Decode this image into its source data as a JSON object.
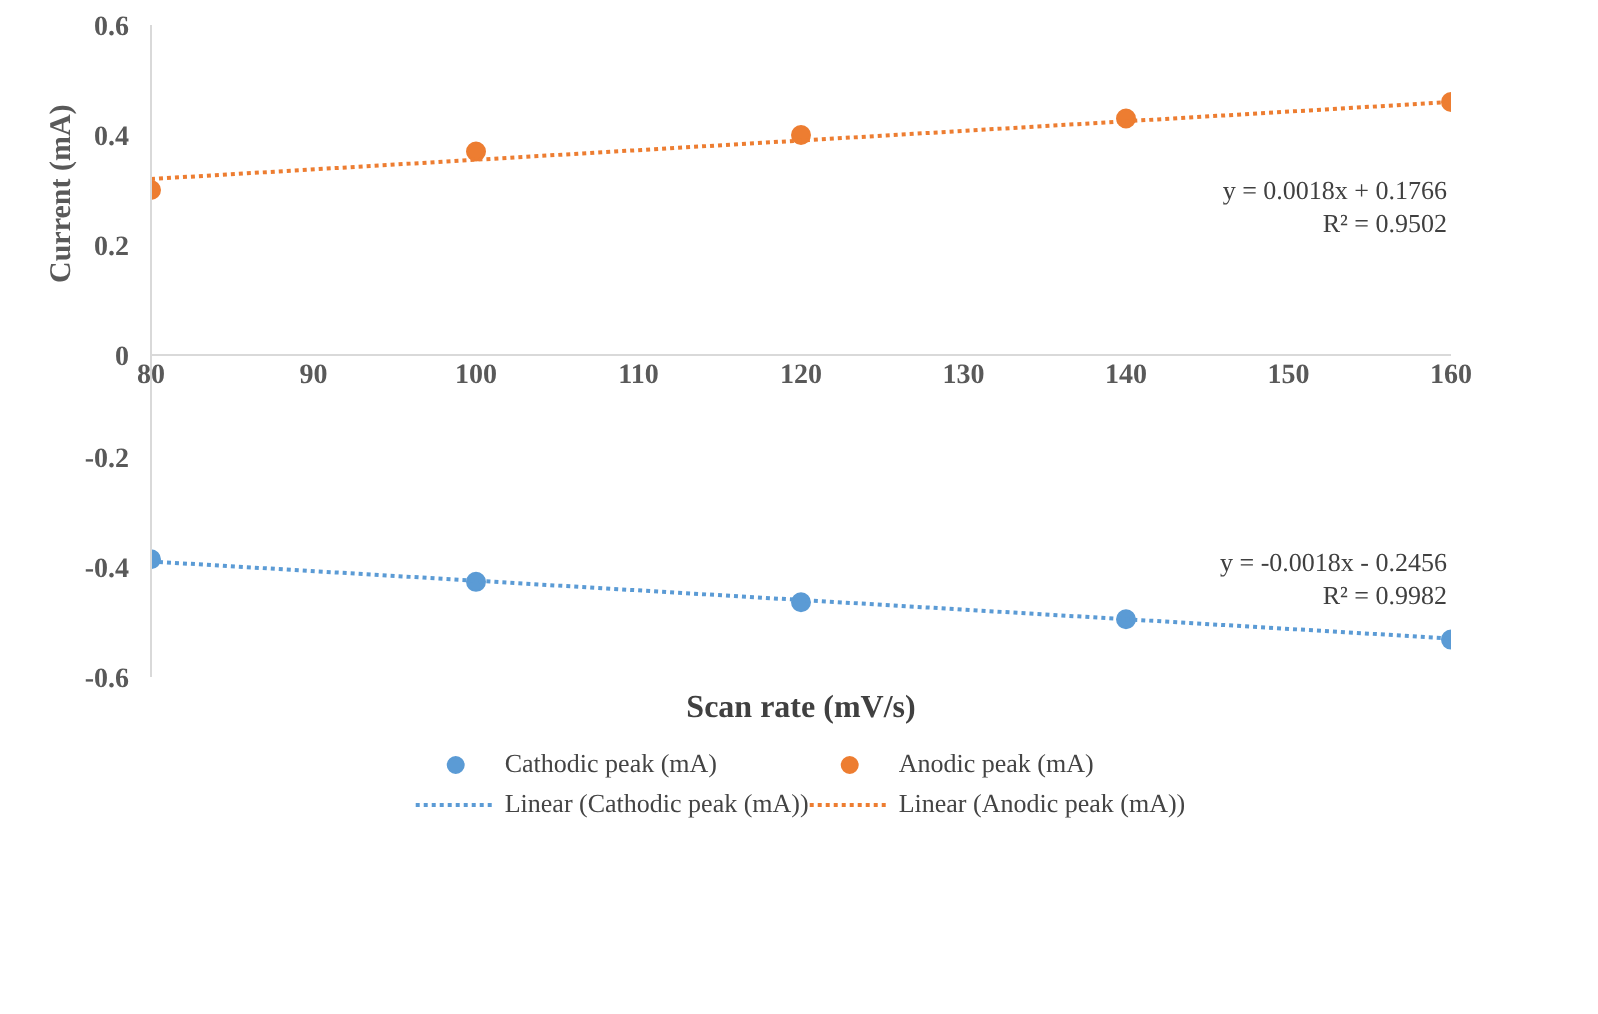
{
  "chart_data": {
    "type": "scatter",
    "xlabel": "Scan rate (mV/s)",
    "ylabel": "Current  (mA)",
    "x": [
      80,
      100,
      120,
      140,
      160
    ],
    "xlim": [
      80,
      160
    ],
    "xticks": [
      80,
      90,
      100,
      110,
      120,
      130,
      140,
      150,
      160
    ],
    "ylim": [
      -0.6,
      0.6
    ],
    "yticks": [
      -0.6,
      -0.4,
      -0.2,
      0,
      0.2,
      0.4,
      0.6
    ],
    "grid": false,
    "legend": "bottom",
    "marker": "circle",
    "series": [
      {
        "name": "Cathodic peak (mA)",
        "color": "#5b9bd5",
        "values": [
          -0.386,
          -0.427,
          -0.464,
          -0.495,
          -0.532
        ]
      },
      {
        "name": "Anodic peak (mA)",
        "color": "#ed7d31",
        "values": [
          0.3,
          0.37,
          0.4,
          0.43,
          0.46
        ]
      },
      {
        "name": "Linear (Cathodic peak (mA))",
        "type": "line",
        "marker": "none",
        "line_style": "dotted",
        "color": "#5b9bd5",
        "x": [
          80,
          120,
          160
        ],
        "values": [
          -0.39,
          -0.46,
          -0.53
        ]
      },
      {
        "name": "Linear (Anodic peak (mA))",
        "type": "line",
        "marker": "none",
        "line_style": "dotted",
        "color": "#ed7d31",
        "x": [
          80,
          120,
          160
        ],
        "values": [
          0.32,
          0.39,
          0.46
        ]
      }
    ],
    "annotations": [
      "y = 0.0018x + 0.1766\nR² = 0.9502",
      "y = -0.0018x - 0.2456\nR² = 0.9982"
    ]
  }
}
